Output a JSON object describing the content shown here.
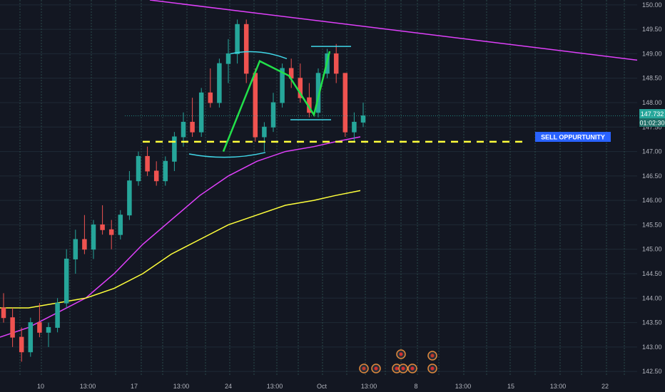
{
  "chart_data": {
    "type": "candlestick",
    "y_range": [
      142.4,
      150.1
    ],
    "y_ticks": [
      "142.50",
      "143.00",
      "143.50",
      "144.00",
      "144.50",
      "145.00",
      "145.50",
      "146.00",
      "146.50",
      "147.00",
      "147.50",
      "148.00",
      "148.50",
      "149.00",
      "149.50",
      "150.00"
    ],
    "x_ticks": [
      "10",
      "13:00",
      "17",
      "13:00",
      "24",
      "13:00",
      "Oct",
      "13:00",
      "8",
      "13:00",
      "15",
      "13:00",
      "22"
    ],
    "candles": [
      [
        143.8,
        144.1,
        143.5,
        143.6
      ],
      [
        143.6,
        143.8,
        143.0,
        143.2
      ],
      [
        143.2,
        143.4,
        142.7,
        142.9
      ],
      [
        142.9,
        143.6,
        142.8,
        143.5
      ],
      [
        143.5,
        143.9,
        143.2,
        143.3
      ],
      [
        143.3,
        143.5,
        143.0,
        143.4
      ],
      [
        143.4,
        144.0,
        143.3,
        143.9
      ],
      [
        143.9,
        145.0,
        143.8,
        144.8
      ],
      [
        144.8,
        145.4,
        144.5,
        145.2
      ],
      [
        145.2,
        145.7,
        144.9,
        145.0
      ],
      [
        145.0,
        145.6,
        144.8,
        145.5
      ],
      [
        145.5,
        145.9,
        145.3,
        145.4
      ],
      [
        145.4,
        145.6,
        145.0,
        145.3
      ],
      [
        145.3,
        145.8,
        145.2,
        145.7
      ],
      [
        145.7,
        146.6,
        145.6,
        146.4
      ],
      [
        146.4,
        147.0,
        146.3,
        146.9
      ],
      [
        146.9,
        147.1,
        146.5,
        146.6
      ],
      [
        146.6,
        146.8,
        146.3,
        146.4
      ],
      [
        146.4,
        146.9,
        146.3,
        146.8
      ],
      [
        146.8,
        147.4,
        146.6,
        147.3
      ],
      [
        147.3,
        147.8,
        147.1,
        147.6
      ],
      [
        147.6,
        148.1,
        147.3,
        147.4
      ],
      [
        147.4,
        148.3,
        147.3,
        148.2
      ],
      [
        148.2,
        148.7,
        147.9,
        148.0
      ],
      [
        148.0,
        148.9,
        147.9,
        148.8
      ],
      [
        148.8,
        149.3,
        148.4,
        149.0
      ],
      [
        149.0,
        149.7,
        148.8,
        149.6
      ],
      [
        149.6,
        149.7,
        148.4,
        148.6
      ],
      [
        148.6,
        148.7,
        147.2,
        147.3
      ],
      [
        147.3,
        147.6,
        147.0,
        147.5
      ],
      [
        147.5,
        148.2,
        147.4,
        148.0
      ],
      [
        148.0,
        148.8,
        147.9,
        148.7
      ],
      [
        148.7,
        148.9,
        148.3,
        148.5
      ],
      [
        148.5,
        148.8,
        148.0,
        148.1
      ],
      [
        148.1,
        148.4,
        147.7,
        147.8
      ],
      [
        147.8,
        148.7,
        147.7,
        148.6
      ],
      [
        148.6,
        149.1,
        148.5,
        149.0
      ],
      [
        149.0,
        149.2,
        148.4,
        148.6
      ],
      [
        148.6,
        148.6,
        147.3,
        147.4
      ],
      [
        147.4,
        147.8,
        147.2,
        147.6
      ],
      [
        147.6,
        148.0,
        147.5,
        147.73
      ]
    ],
    "candle_x_start": 5,
    "candle_x_step": 12.6,
    "ma_magenta": [
      [
        0,
        143.2
      ],
      [
        40,
        143.4
      ],
      [
        80,
        143.7
      ],
      [
        120,
        144.0
      ],
      [
        160,
        144.5
      ],
      [
        200,
        145.1
      ],
      [
        240,
        145.6
      ],
      [
        280,
        146.1
      ],
      [
        320,
        146.5
      ],
      [
        360,
        146.8
      ],
      [
        400,
        147.0
      ],
      [
        440,
        147.1
      ],
      [
        470,
        147.2
      ],
      [
        505,
        147.3
      ]
    ],
    "ma_yellow": [
      [
        0,
        143.8
      ],
      [
        40,
        143.8
      ],
      [
        80,
        143.9
      ],
      [
        120,
        144.0
      ],
      [
        160,
        144.2
      ],
      [
        200,
        144.5
      ],
      [
        240,
        144.9
      ],
      [
        280,
        145.2
      ],
      [
        320,
        145.5
      ],
      [
        360,
        145.7
      ],
      [
        400,
        145.9
      ],
      [
        440,
        146.0
      ],
      [
        470,
        146.1
      ],
      [
        505,
        146.2
      ]
    ],
    "trendline": [
      [
        210,
        150.1
      ],
      [
        932,
        148.8
      ]
    ],
    "sell_level": 147.2,
    "sell_label": "SELL OPPURTUNITY",
    "current_price": "147.732",
    "countdown": "01:02:30",
    "colors": {
      "bull": "#26a69a",
      "bear": "#ef5350",
      "magenta": "#e040fb",
      "yellow": "#ffff3b",
      "green": "#22e04a",
      "cyan": "#40d7e8",
      "label_bg": "#2962ff"
    }
  }
}
